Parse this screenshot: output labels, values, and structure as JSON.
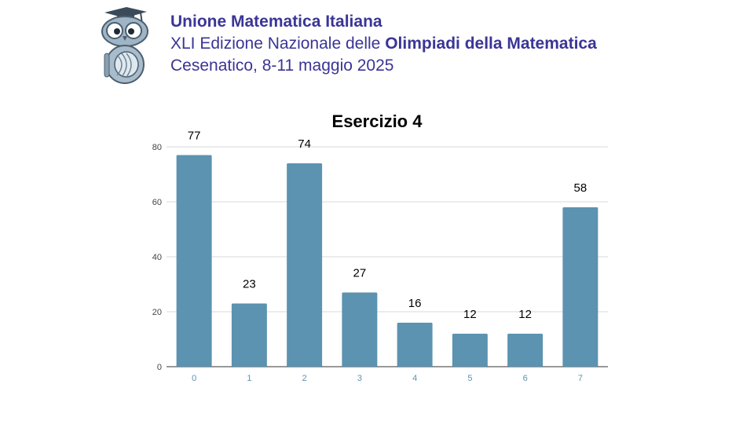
{
  "header": {
    "org": "Unione Matematica Italiana",
    "edition_prefix": "XLI Edizione Nazionale delle ",
    "edition_bold": "Olimpiadi della Matematica",
    "place_date": "Cesenatico, 8-11 maggio 2025",
    "logo_icon": "owl-mascot-icon"
  },
  "chart_data": {
    "type": "bar",
    "title": "Esercizio 4",
    "categories": [
      "0",
      "1",
      "2",
      "3",
      "4",
      "5",
      "6",
      "7"
    ],
    "values": [
      77,
      23,
      74,
      27,
      16,
      12,
      12,
      58
    ],
    "ylim": [
      0,
      80
    ],
    "yticks": [
      0,
      20,
      40,
      60,
      80
    ],
    "xlabel": "",
    "ylabel": "",
    "grid": true,
    "legend": "none",
    "bar_color": "#5b93b0",
    "tick_label_color_x": "#5b93b0",
    "text_color": "#000000",
    "accent_color": "#3a3596"
  }
}
